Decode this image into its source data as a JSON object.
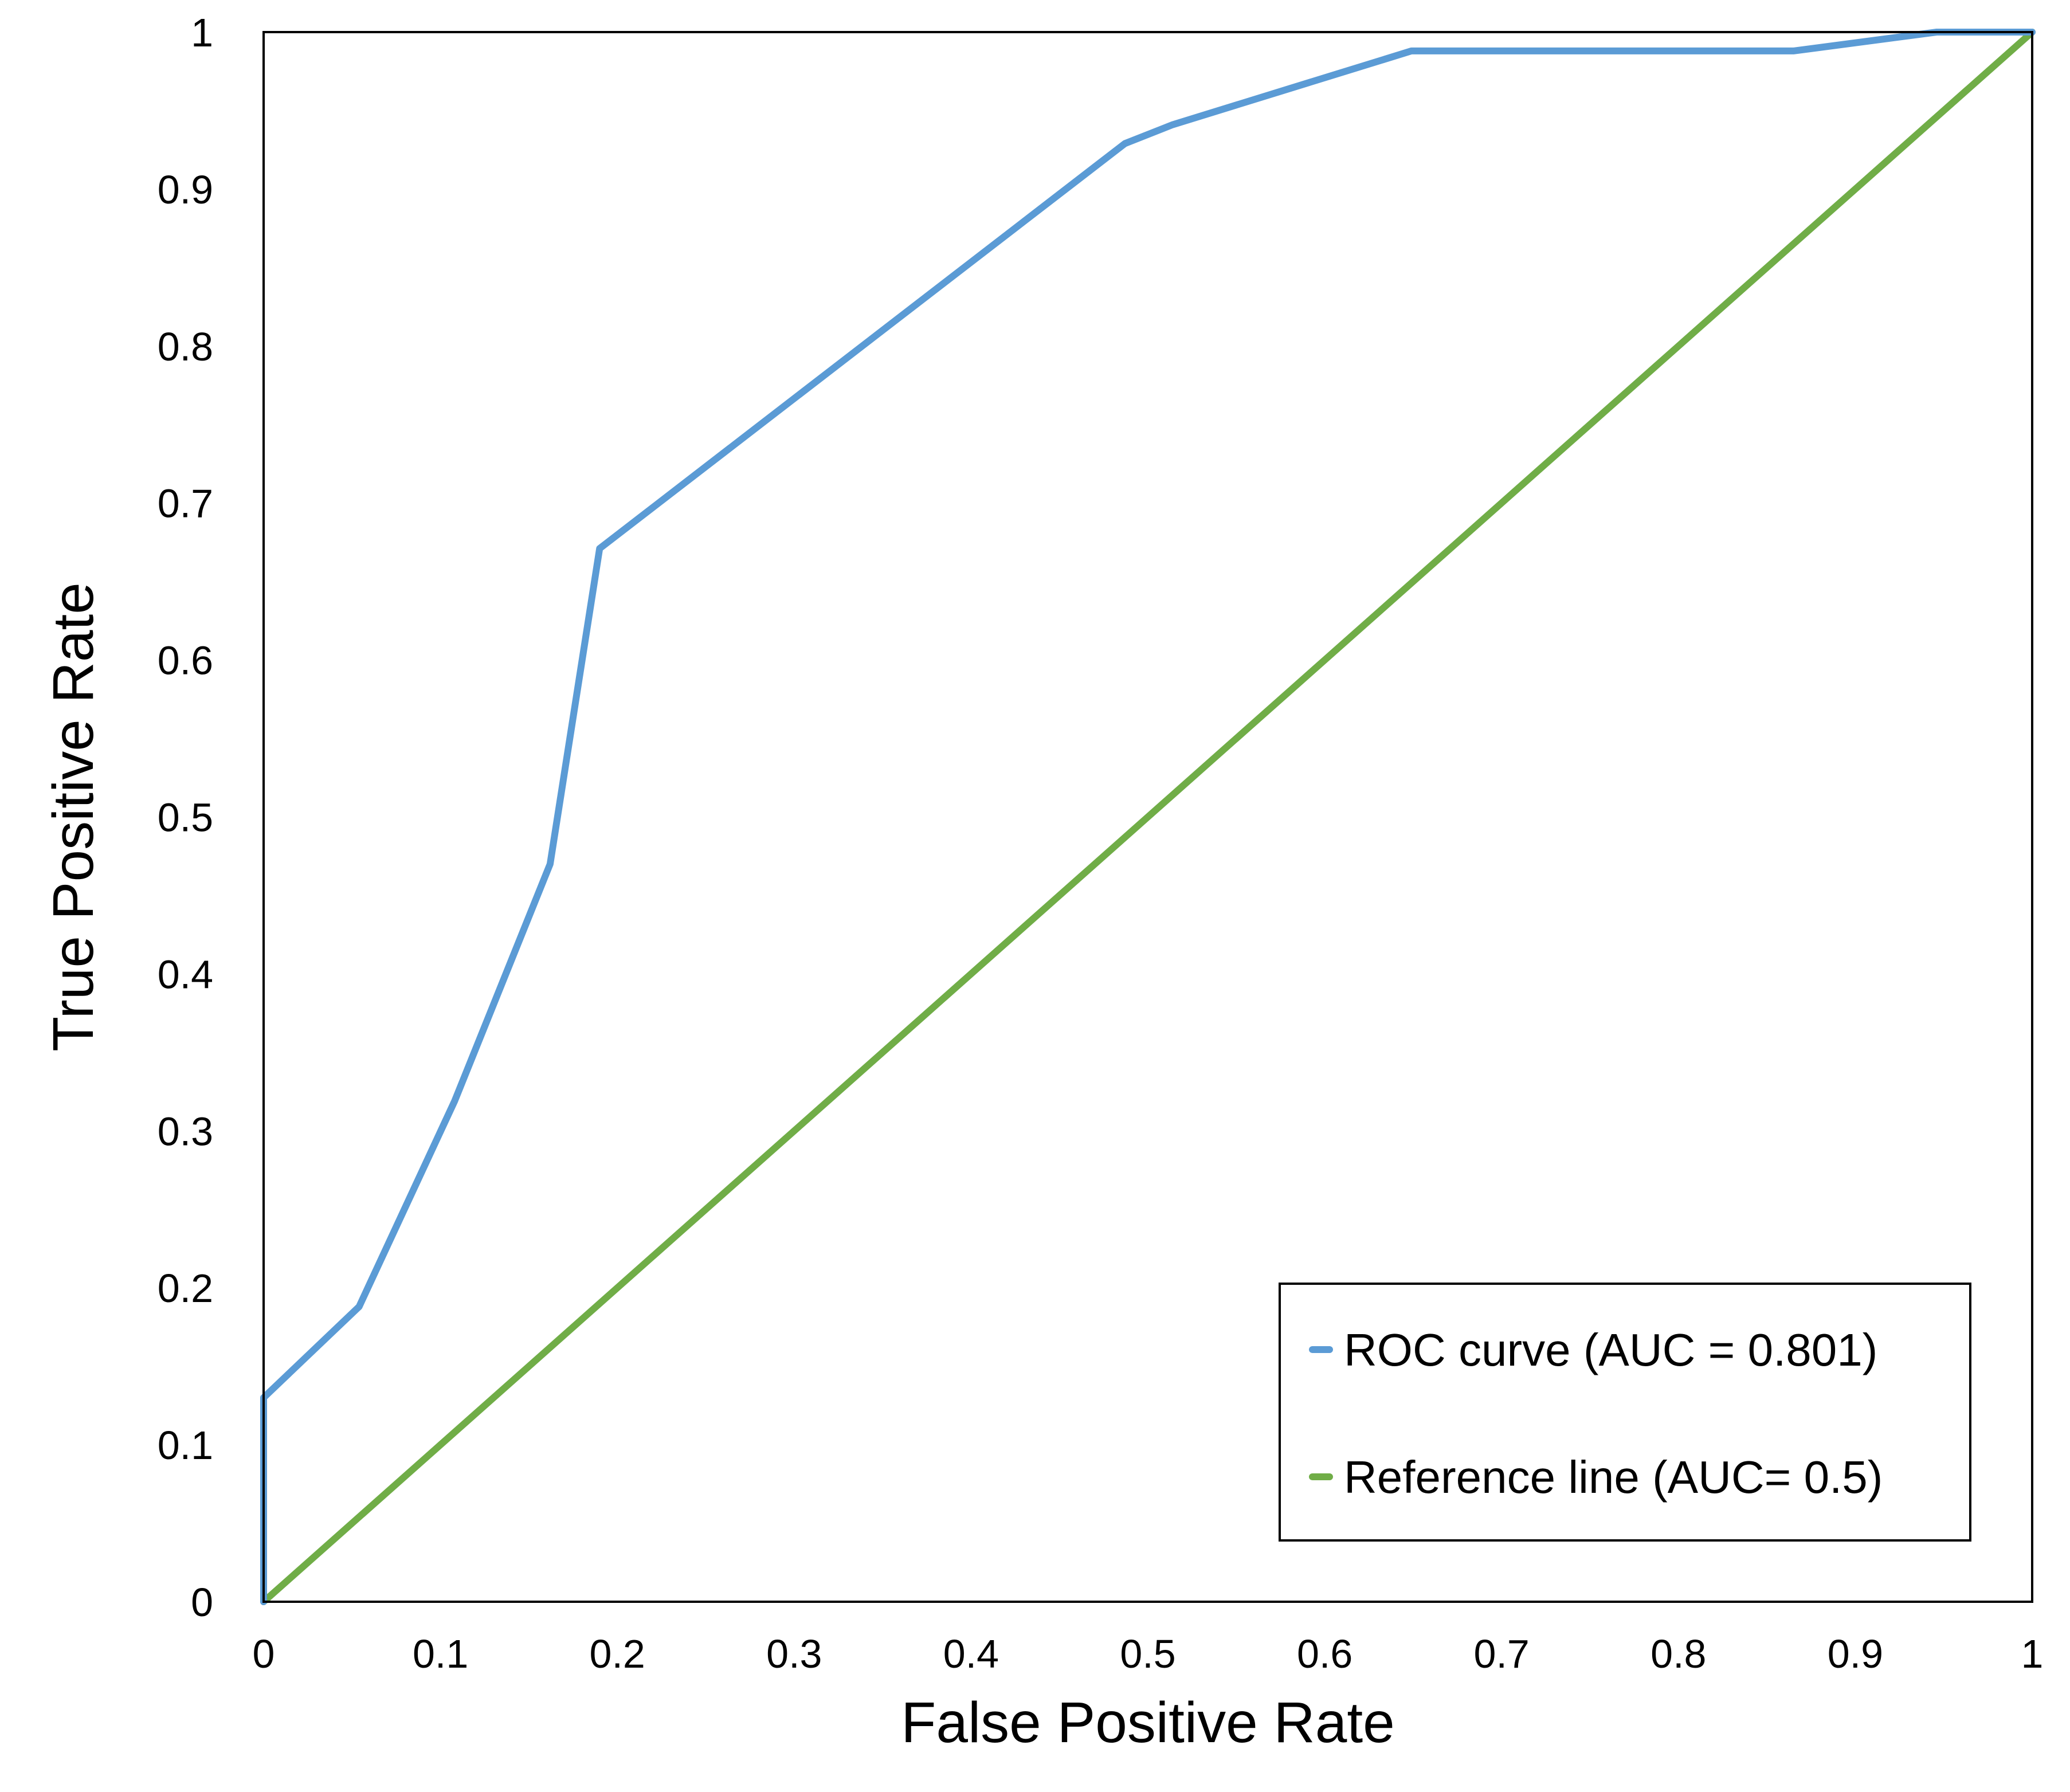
{
  "chart_data": {
    "type": "line",
    "xlabel": "False Positive Rate",
    "ylabel": "True Positive Rate",
    "xlim": [
      0,
      1
    ],
    "ylim": [
      0,
      1
    ],
    "x_ticks": [
      "0",
      "0.1",
      "0.2",
      "0.3",
      "0.4",
      "0.5",
      "0.6",
      "0.7",
      "0.8",
      "0.9",
      "1"
    ],
    "y_ticks": [
      "0",
      "0.1",
      "0.2",
      "0.3",
      "0.4",
      "0.5",
      "0.6",
      "0.7",
      "0.8",
      "0.9",
      "1"
    ],
    "grid": false,
    "legend_position": "bottom-right",
    "series": [
      {
        "name": "ROC curve (AUC = 0.801)",
        "color": "#5B9BD5",
        "x": [
          0,
          0,
          0.054,
          0.108,
          0.162,
          0.19,
          0.487,
          0.514,
          0.649,
          0.865,
          0.946,
          1
        ],
        "y": [
          0,
          0.13,
          0.188,
          0.319,
          0.47,
          0.671,
          0.929,
          0.941,
          0.988,
          0.988,
          1,
          1
        ]
      },
      {
        "name": "Reference line (AUC= 0.5)",
        "color": "#70AD47",
        "x": [
          0,
          1
        ],
        "y": [
          0,
          1
        ]
      }
    ]
  }
}
